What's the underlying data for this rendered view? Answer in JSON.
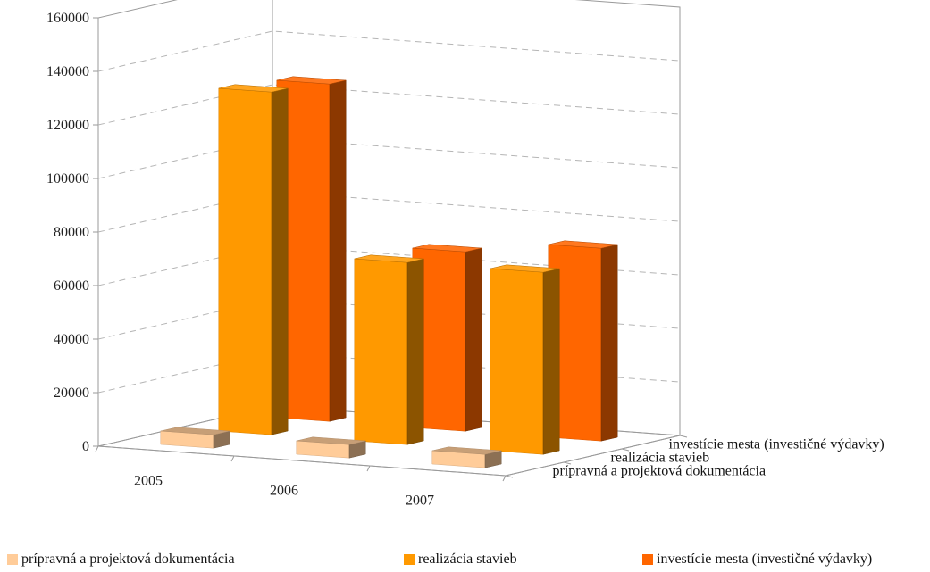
{
  "chart_data": {
    "type": "bar",
    "variant": "3d-column",
    "title": "",
    "xlabel": "",
    "ylabel": "",
    "ylim": [
      0,
      160000
    ],
    "y_ticks": [
      "0",
      "20000",
      "40000",
      "60000",
      "80000",
      "100000",
      "120000",
      "140000",
      "160000"
    ],
    "categories": [
      "2005",
      "2006",
      "2007"
    ],
    "series": [
      {
        "name": "prípravná a projektová dokumentácia",
        "color": "#FFCC99",
        "values": [
          5000,
          5000,
          5000
        ]
      },
      {
        "name": "realizácia stavieb",
        "color": "#FF9900",
        "values": [
          128000,
          68000,
          68000
        ]
      },
      {
        "name": "investície mesta (investičné výdavky)",
        "color": "#FF6600",
        "values": [
          126000,
          67000,
          72000
        ]
      }
    ],
    "grid": true,
    "legend": "bottom"
  }
}
